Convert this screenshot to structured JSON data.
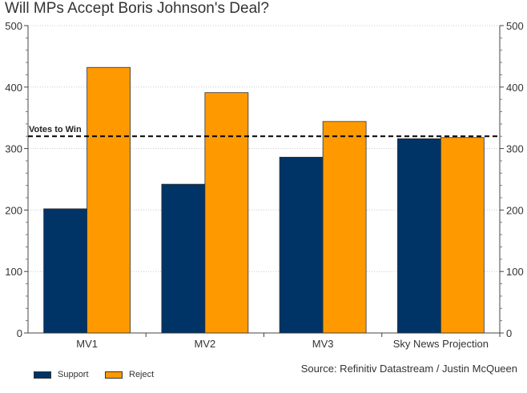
{
  "chart_data": {
    "type": "bar",
    "title": "Will MPs Accept Boris Johnson's Deal?",
    "categories": [
      "MV1",
      "MV2",
      "MV3",
      "Sky News Projection"
    ],
    "series": [
      {
        "name": "Support",
        "values": [
          202,
          242,
          286,
          316
        ],
        "color": "#003366"
      },
      {
        "name": "Reject",
        "values": [
          432,
          391,
          344,
          318
        ],
        "color": "#FF9900"
      }
    ],
    "ylim": [
      0,
      500
    ],
    "yticks": [
      0,
      100,
      200,
      300,
      400,
      500
    ],
    "reference_line": {
      "value": 320,
      "label": "Votes to Win",
      "style": "dashed",
      "color": "#000000"
    },
    "grid": true,
    "legend_position": "bottom-left",
    "secondary_y_axis": "mirrored",
    "xlabel": "",
    "ylabel": ""
  },
  "source_note": "Source: Refinitiv Datastream / Justin McQueen"
}
